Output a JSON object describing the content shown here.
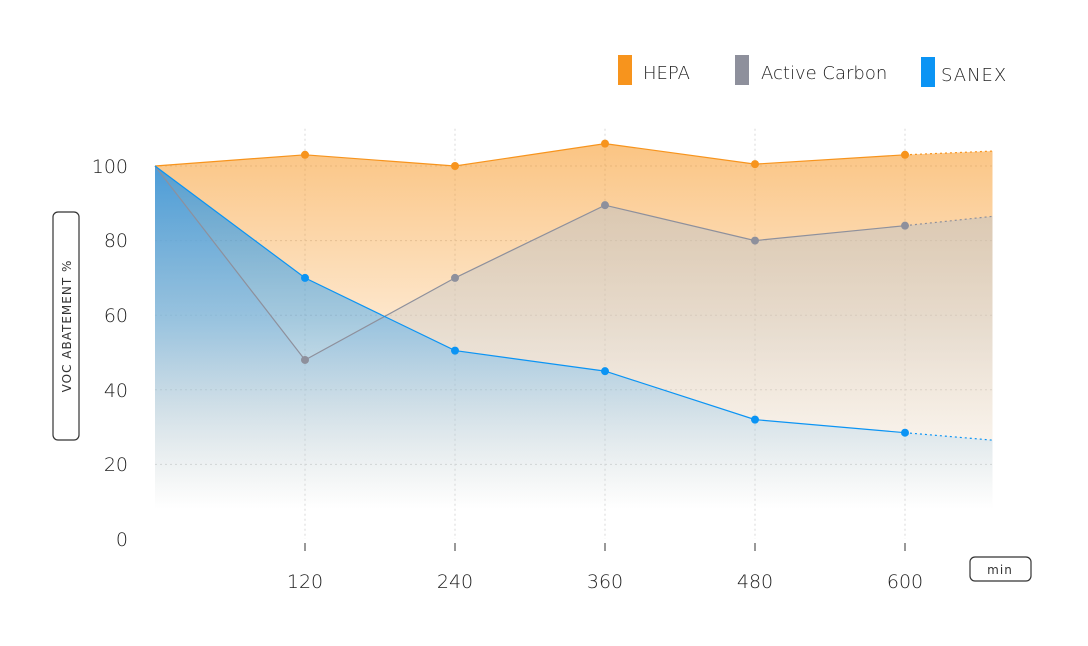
{
  "chart_data": {
    "type": "area",
    "x": [
      0,
      120,
      240,
      360,
      480,
      600
    ],
    "x_tick_labels": [
      "120",
      "240",
      "360",
      "480",
      "600"
    ],
    "x_extend_to": 670,
    "xlabel": "min",
    "ylabel": "VOC ABATEMENT %",
    "ylim": [
      0,
      110
    ],
    "y_ticks": [
      0,
      20,
      40,
      60,
      80,
      100
    ],
    "y_tick_labels": [
      "0",
      "20",
      "40",
      "60",
      "80",
      "100"
    ],
    "grid": true,
    "legend_placement": "top-right",
    "series": [
      {
        "name": "HEPA",
        "color": "#F7941D",
        "values": [
          100,
          103,
          100,
          106,
          100.5,
          103
        ],
        "projected_end": 104
      },
      {
        "name": "Active Carbon",
        "color": "#8E909C",
        "values": [
          100,
          48,
          70,
          89.5,
          80,
          84
        ],
        "projected_end": 86.5
      },
      {
        "name": "SANEX",
        "color": "#0B94F4",
        "values": [
          100,
          70,
          50.5,
          45,
          32,
          28.5
        ],
        "projected_end": 26.5
      }
    ]
  }
}
